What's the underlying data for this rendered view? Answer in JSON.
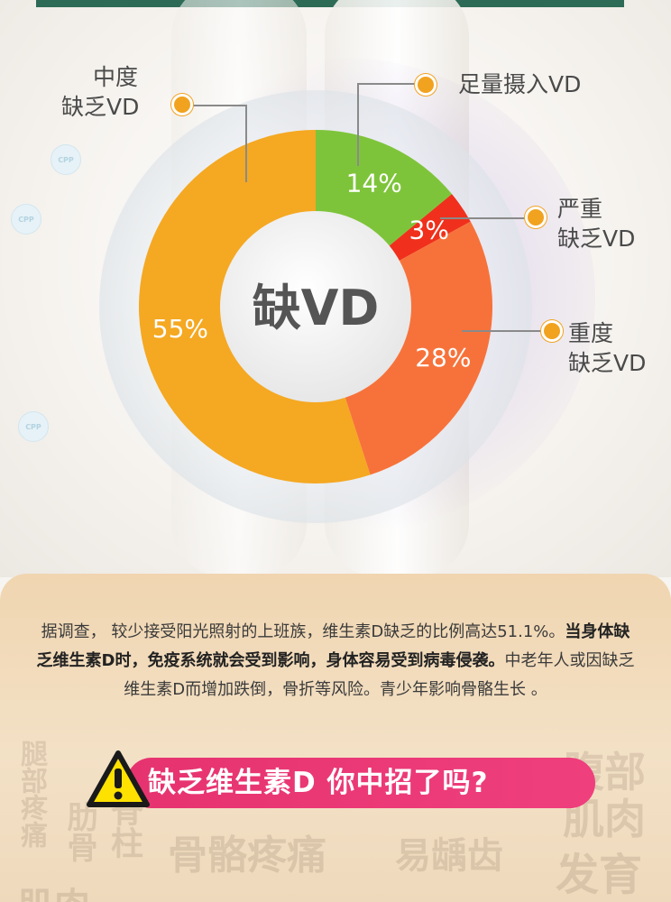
{
  "chart_data": {
    "type": "pie",
    "center_label": "缺VD",
    "slices": [
      {
        "label": "足量摄入VD",
        "value": 14,
        "value_label": "14%",
        "color": "#7ec43a"
      },
      {
        "label": "严重\n缺乏VD",
        "value": 3,
        "value_label": "3%",
        "color": "#f0301c"
      },
      {
        "label": "重度\n缺乏VD",
        "value": 28,
        "value_label": "28%",
        "color": "#f7723a"
      },
      {
        "label": "中度\n缺乏VD",
        "value": 55,
        "value_label": "55%",
        "color": "#f5a821"
      }
    ]
  },
  "callouts": {
    "moderate": {
      "line1": "中度",
      "line2": "缺乏VD"
    },
    "sufficient": {
      "line1": "足量摄入VD"
    },
    "severe": {
      "line1": "严重",
      "line2": "缺乏VD"
    },
    "serious": {
      "line1": "重度",
      "line2": "缺乏VD"
    }
  },
  "background_badges": [
    "CPP",
    "CPP",
    "CPP"
  ],
  "description": {
    "part1": "据调查， 较少接受阳光照射的上班族，维生素D缺乏的比例高达51.1%。",
    "part2": "当身体缺乏维生素D时，免疫系统就会受到影响，身体容易受到病毒侵袭。",
    "part3": "中老年人或因缺乏维生素D而增加跌倒，骨折等风险。青少年影响骨骼生长 。"
  },
  "banner": {
    "text": "缺乏维生素D 你中招了吗?"
  },
  "watermarks": [
    "腿部疼痛",
    "肋骨",
    "脊柱",
    "骨骼疼痛",
    "易龋齿",
    "腹部",
    "肌肉",
    "发育",
    "肌肉"
  ],
  "colors": {
    "accent": "#f1a21f",
    "banner": "#e6336f",
    "panel": "#f0d5b0"
  }
}
